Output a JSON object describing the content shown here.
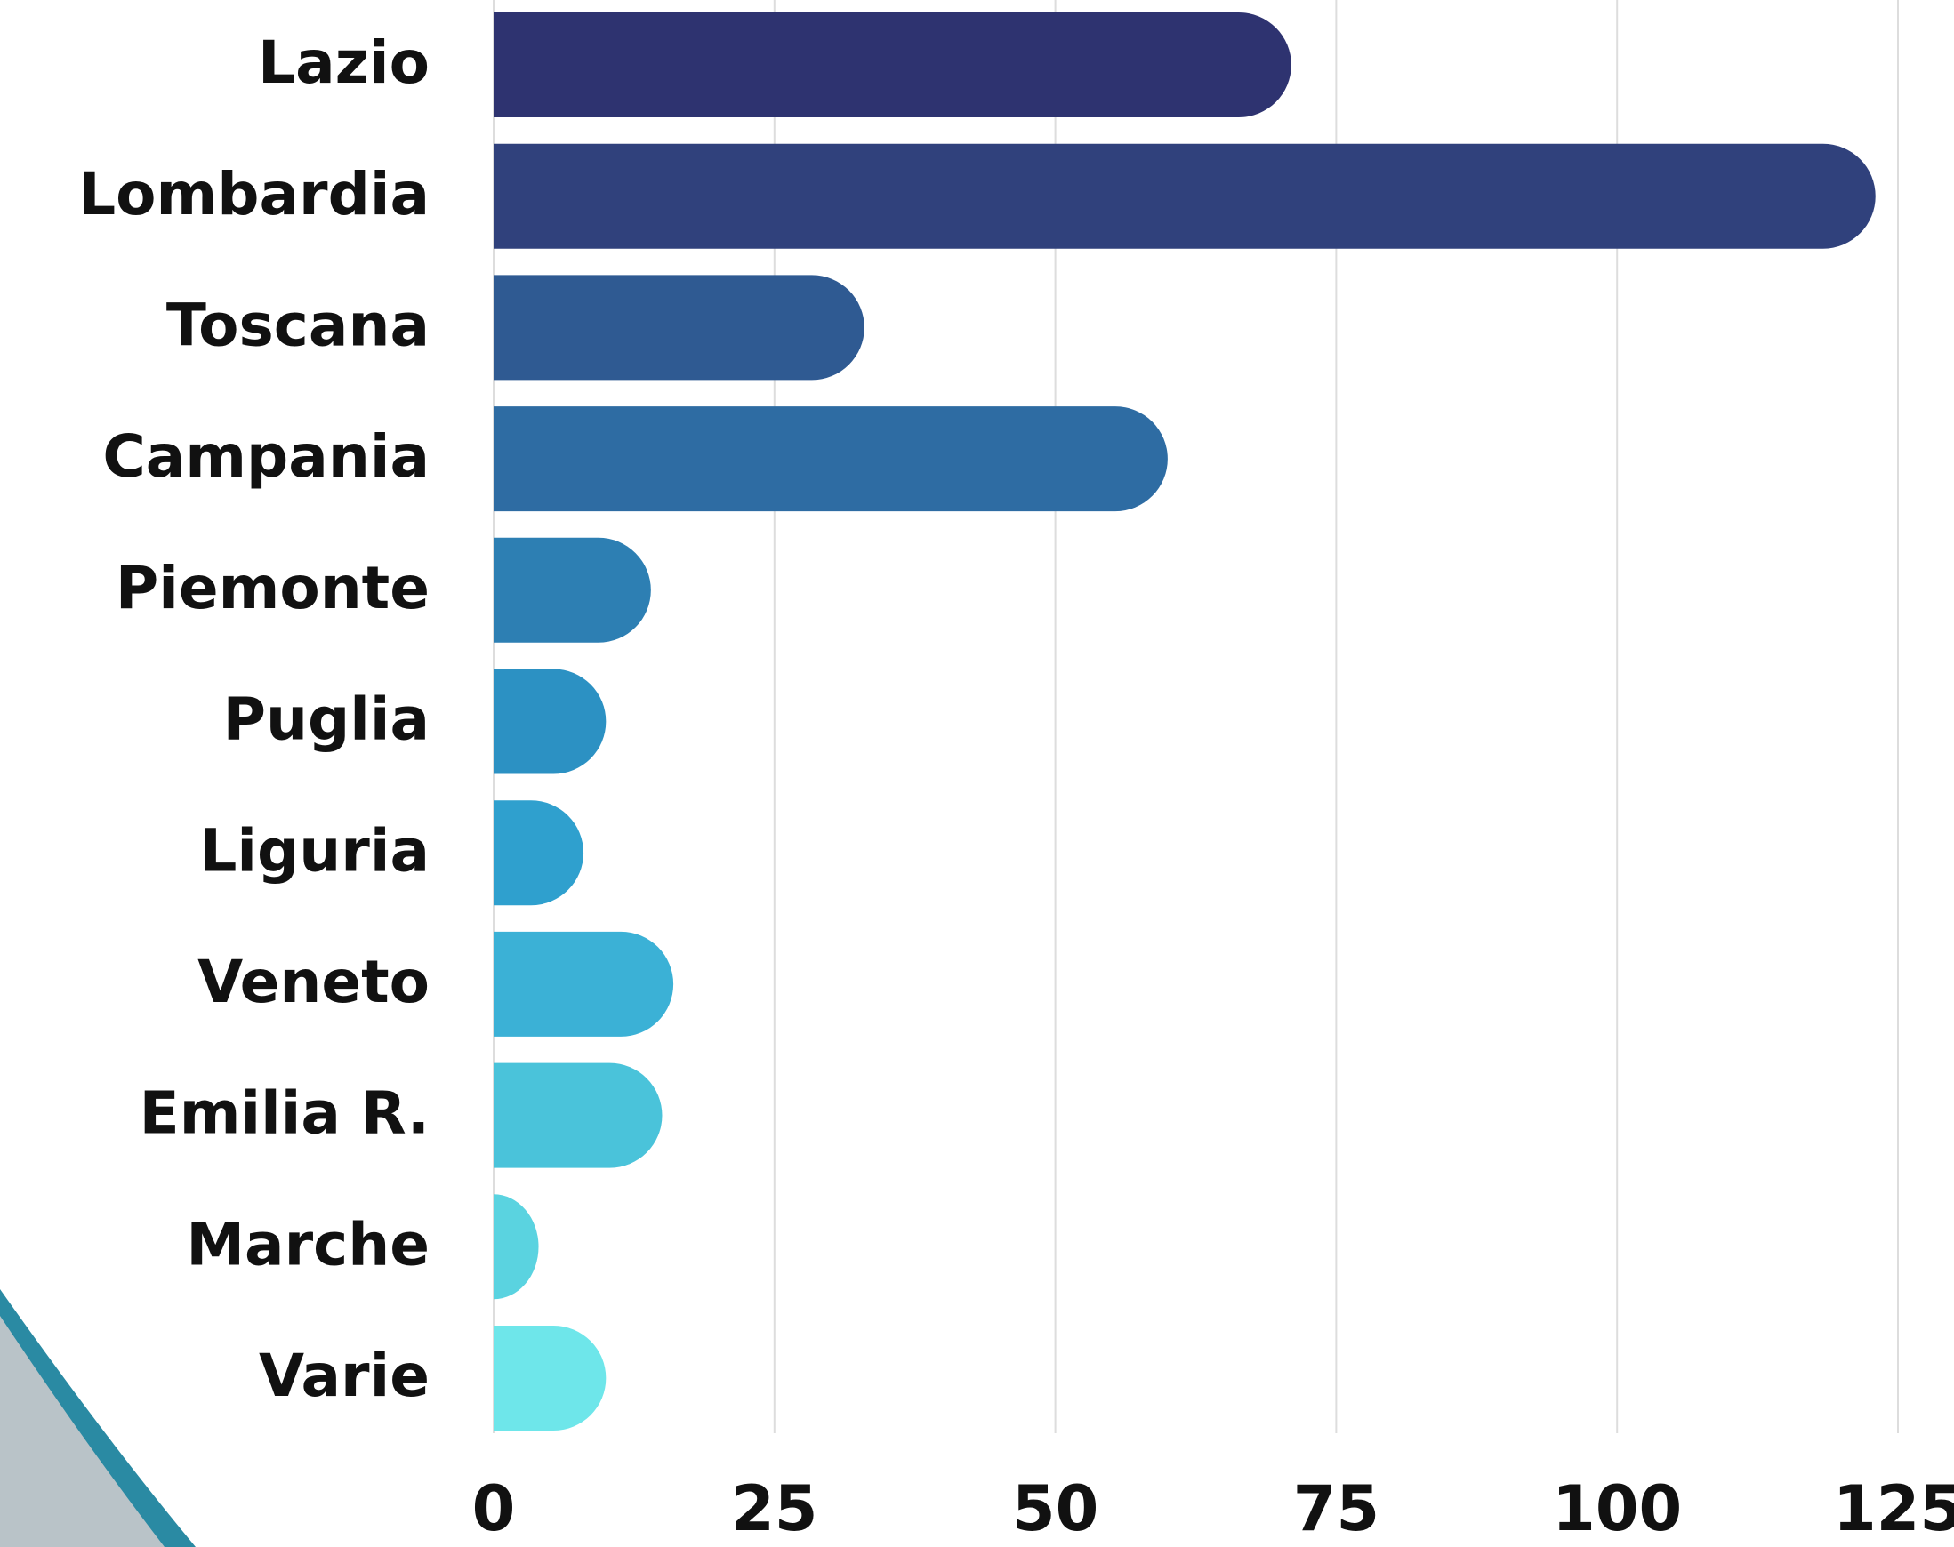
{
  "chart_data": {
    "type": "barh",
    "categories": [
      "Lazio",
      "Lombardia",
      "Toscana",
      "Campania",
      "Piemonte",
      "Puglia",
      "Liguria",
      "Veneto",
      "Emilia R.",
      "Marche",
      "Varie"
    ],
    "values": [
      71,
      123,
      33,
      60,
      14,
      10,
      8,
      16,
      15,
      4,
      10
    ],
    "colors": [
      "#2e3370",
      "#30417c",
      "#2f5a92",
      "#2e6ca3",
      "#2d7fb3",
      "#2c91c3",
      "#2fa0ce",
      "#3bb1d6",
      "#4ac3da",
      "#5ad3e0",
      "#6ee6ea"
    ],
    "xlim": [
      0,
      125
    ],
    "xticks": [
      0,
      25,
      50,
      75,
      100,
      125
    ],
    "grid": true
  }
}
